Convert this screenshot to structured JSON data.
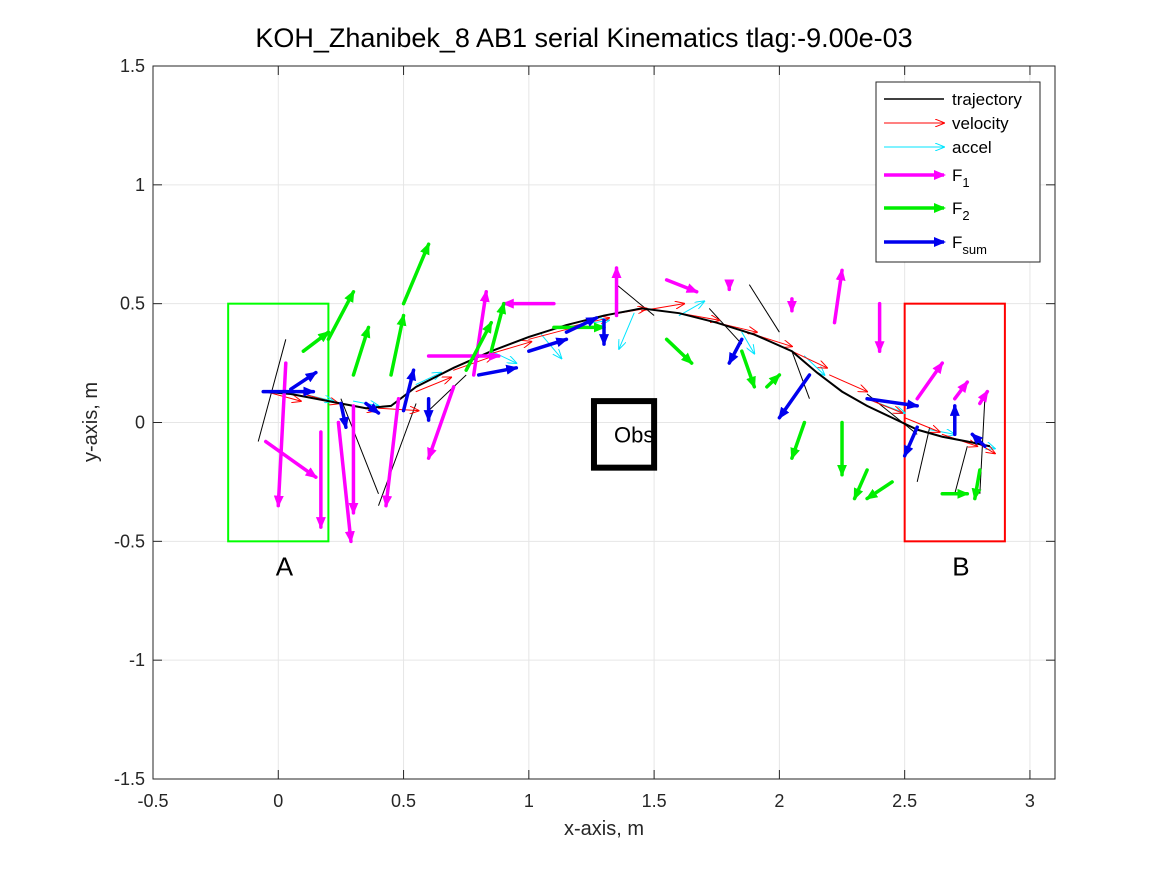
{
  "chart_data": {
    "type": "line",
    "title": "KOH_Zhanibek_8    AB1    serial    Kinematics tlag:-9.00e-03",
    "xlabel": "x-axis, m",
    "ylabel": "y-axis, m",
    "xlim": [
      -0.5,
      3.1
    ],
    "ylim": [
      -1.5,
      1.5
    ],
    "xticks": [
      -0.5,
      0,
      0.5,
      1,
      1.5,
      2,
      2.5,
      3
    ],
    "xtick_labels": [
      "-0.5",
      "0",
      "0.5",
      "1",
      "1.5",
      "2",
      "2.5",
      "3"
    ],
    "yticks": [
      -1.5,
      -1,
      -0.5,
      0,
      0.5,
      1,
      1.5
    ],
    "ytick_labels": [
      "-1.5",
      "-1",
      "-0.5",
      "0",
      "0.5",
      "1",
      "1.5"
    ],
    "grid": true,
    "legend_position": "top-right",
    "legend": [
      {
        "label": "trajectory",
        "color": "#000000",
        "style": "line"
      },
      {
        "label": "velocity",
        "color": "#ff0000",
        "style": "arrow-thin"
      },
      {
        "label": "accel",
        "color": "#00e5ff",
        "style": "arrow-thin"
      },
      {
        "label": "F",
        "sub": "1",
        "color": "#ff00ff",
        "style": "arrow-thick"
      },
      {
        "label": "F",
        "sub": "2",
        "color": "#00ee00",
        "style": "arrow-thick"
      },
      {
        "label": "F",
        "sub": "sum",
        "color": "#0000ee",
        "style": "arrow-thick"
      }
    ],
    "regions": [
      {
        "name": "A",
        "x": [
          -0.2,
          0.2
        ],
        "y": [
          -0.5,
          0.5
        ],
        "color": "#00ff00",
        "label_at": [
          -0.01,
          -0.61
        ]
      },
      {
        "name": "B",
        "x": [
          2.5,
          2.9
        ],
        "y": [
          -0.5,
          0.5
        ],
        "color": "#ff0000",
        "label_at": [
          2.69,
          -0.61
        ]
      },
      {
        "name": "Obs",
        "x": [
          1.26,
          1.5
        ],
        "y": [
          -0.19,
          0.09
        ],
        "color": "#000000",
        "label_at": [
          1.34,
          -0.05
        ]
      }
    ],
    "trajectory": {
      "x": [
        -0.06,
        0.05,
        0.2,
        0.35,
        0.45,
        0.55,
        0.7,
        0.85,
        1.0,
        1.15,
        1.3,
        1.45,
        1.6,
        1.75,
        1.9,
        2.05,
        2.15,
        2.25,
        2.35,
        2.45,
        2.55,
        2.65,
        2.75,
        2.84
      ],
      "y": [
        0.13,
        0.12,
        0.09,
        0.06,
        0.07,
        0.15,
        0.23,
        0.3,
        0.36,
        0.41,
        0.45,
        0.48,
        0.46,
        0.42,
        0.37,
        0.3,
        0.21,
        0.13,
        0.07,
        0.02,
        -0.03,
        -0.06,
        -0.08,
        -0.1
      ]
    },
    "velocity": [
      [
        -0.05,
        0.13,
        0.14,
        -0.04
      ],
      [
        0.1,
        0.12,
        0.14,
        -0.04
      ],
      [
        0.25,
        0.08,
        0.14,
        -0.03
      ],
      [
        0.4,
        0.06,
        0.16,
        -0.01
      ],
      [
        0.55,
        0.13,
        0.14,
        0.06
      ],
      [
        0.7,
        0.22,
        0.16,
        0.06
      ],
      [
        0.85,
        0.29,
        0.16,
        0.05
      ],
      [
        1.0,
        0.35,
        0.18,
        0.05
      ],
      [
        1.15,
        0.4,
        0.17,
        0.04
      ],
      [
        1.3,
        0.45,
        0.17,
        0.03
      ],
      [
        1.45,
        0.47,
        0.17,
        0.03
      ],
      [
        1.6,
        0.46,
        0.16,
        -0.03
      ],
      [
        1.75,
        0.42,
        0.16,
        -0.04
      ],
      [
        1.9,
        0.37,
        0.15,
        -0.05
      ],
      [
        2.05,
        0.3,
        0.14,
        -0.07
      ],
      [
        2.2,
        0.2,
        0.15,
        -0.07
      ],
      [
        2.35,
        0.1,
        0.14,
        -0.06
      ],
      [
        2.5,
        0.02,
        0.14,
        -0.06
      ],
      [
        2.65,
        -0.05,
        0.14,
        -0.05
      ],
      [
        2.78,
        -0.08,
        0.08,
        -0.05
      ]
    ],
    "accel": [
      [
        0.1,
        0.12,
        0.12,
        -0.03
      ],
      [
        0.3,
        0.09,
        0.1,
        -0.02
      ],
      [
        0.55,
        0.16,
        0.1,
        0.05
      ],
      [
        0.85,
        0.3,
        0.1,
        -0.05
      ],
      [
        1.05,
        0.37,
        0.08,
        -0.1
      ],
      [
        1.2,
        0.41,
        0.12,
        0.02
      ],
      [
        1.42,
        0.46,
        -0.06,
        -0.15
      ],
      [
        1.6,
        0.45,
        0.1,
        0.06
      ],
      [
        1.85,
        0.38,
        0.05,
        -0.09
      ],
      [
        2.1,
        0.28,
        0.08,
        -0.08
      ],
      [
        2.4,
        0.08,
        0.1,
        -0.04
      ],
      [
        2.6,
        -0.03,
        0.1,
        -0.02
      ],
      [
        2.78,
        -0.08,
        0.08,
        -0.03
      ]
    ],
    "F1": [
      [
        -0.05,
        -0.08,
        0.2,
        -0.15
      ],
      [
        0.03,
        0.25,
        -0.03,
        -0.6
      ],
      [
        0.3,
        0.07,
        0.0,
        -0.45
      ],
      [
        0.48,
        0.1,
        -0.05,
        -0.45
      ],
      [
        0.7,
        0.15,
        -0.1,
        -0.3
      ],
      [
        0.6,
        0.28,
        0.28,
        0.0
      ],
      [
        0.78,
        0.2,
        0.05,
        0.35
      ],
      [
        1.1,
        0.5,
        -0.2,
        0.0
      ],
      [
        1.35,
        0.45,
        0.0,
        0.2
      ],
      [
        1.55,
        0.6,
        0.12,
        -0.05
      ],
      [
        1.8,
        0.58,
        0.0,
        -0.02
      ],
      [
        2.05,
        0.52,
        0.0,
        -0.05
      ],
      [
        2.22,
        0.42,
        0.03,
        0.22
      ],
      [
        2.4,
        0.5,
        0.0,
        -0.2
      ],
      [
        2.55,
        0.1,
        0.1,
        0.15
      ],
      [
        2.7,
        0.1,
        0.05,
        0.07
      ],
      [
        2.8,
        0.08,
        0.03,
        0.05
      ],
      [
        0.17,
        -0.04,
        0.0,
        -0.4
      ],
      [
        0.24,
        0.0,
        0.05,
        -0.5
      ]
    ],
    "F2": [
      [
        0.1,
        0.3,
        0.1,
        0.08
      ],
      [
        0.2,
        0.35,
        0.1,
        0.2
      ],
      [
        0.3,
        0.2,
        0.06,
        0.2
      ],
      [
        0.45,
        0.2,
        0.05,
        0.25
      ],
      [
        0.5,
        0.5,
        0.1,
        0.25
      ],
      [
        0.75,
        0.22,
        0.1,
        0.2
      ],
      [
        0.85,
        0.3,
        0.05,
        0.2
      ],
      [
        1.1,
        0.4,
        0.2,
        0.0
      ],
      [
        1.55,
        0.35,
        0.1,
        -0.1
      ],
      [
        1.85,
        0.3,
        0.05,
        -0.15
      ],
      [
        1.95,
        0.15,
        0.05,
        0.05
      ],
      [
        2.1,
        0.0,
        -0.05,
        -0.15
      ],
      [
        2.25,
        0.0,
        0.0,
        -0.22
      ],
      [
        2.35,
        -0.2,
        -0.05,
        -0.12
      ],
      [
        2.45,
        -0.25,
        -0.1,
        -0.07
      ],
      [
        2.65,
        -0.3,
        0.1,
        0.0
      ],
      [
        2.8,
        -0.2,
        -0.02,
        -0.12
      ]
    ],
    "Fsum": [
      [
        -0.06,
        0.13,
        0.2,
        0.0
      ],
      [
        0.05,
        0.14,
        0.1,
        0.07
      ],
      [
        0.25,
        0.08,
        0.02,
        -0.1
      ],
      [
        0.35,
        0.08,
        0.05,
        -0.04
      ],
      [
        0.5,
        0.05,
        0.04,
        0.17
      ],
      [
        0.6,
        0.1,
        0.0,
        -0.09
      ],
      [
        0.8,
        0.2,
        0.15,
        0.03
      ],
      [
        1.0,
        0.3,
        0.15,
        0.05
      ],
      [
        1.15,
        0.38,
        0.12,
        0.06
      ],
      [
        1.3,
        0.43,
        0.0,
        -0.1
      ],
      [
        1.85,
        0.35,
        -0.05,
        -0.1
      ],
      [
        2.12,
        0.2,
        -0.12,
        -0.18
      ],
      [
        2.35,
        0.1,
        0.2,
        -0.03
      ],
      [
        2.55,
        -0.02,
        -0.05,
        -0.12
      ],
      [
        2.7,
        -0.05,
        0.0,
        0.12
      ],
      [
        2.82,
        -0.1,
        -0.05,
        0.05
      ]
    ],
    "spokes": [
      [
        -0.08,
        -0.08,
        0.03,
        0.35
      ],
      [
        0.25,
        0.1,
        0.4,
        -0.3
      ],
      [
        0.55,
        0.08,
        0.4,
        -0.35
      ],
      [
        0.6,
        0.05,
        0.75,
        0.2
      ],
      [
        1.3,
        0.45,
        1.15,
        0.38
      ],
      [
        1.35,
        0.58,
        1.5,
        0.45
      ],
      [
        1.72,
        0.48,
        1.85,
        0.33
      ],
      [
        1.88,
        0.58,
        2.0,
        0.38
      ],
      [
        2.05,
        0.3,
        2.12,
        0.1
      ],
      [
        2.35,
        0.12,
        2.55,
        -0.05
      ],
      [
        2.6,
        -0.02,
        2.55,
        -0.25
      ],
      [
        2.75,
        -0.1,
        2.7,
        -0.3
      ],
      [
        2.82,
        0.1,
        2.8,
        -0.3
      ]
    ]
  }
}
